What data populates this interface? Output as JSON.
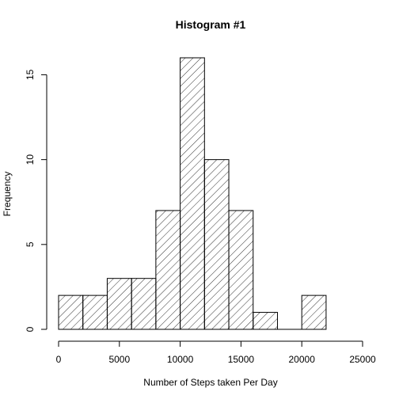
{
  "chart_data": {
    "type": "bar",
    "title": "Histogram #1",
    "xlabel": "Number of Steps taken Per Day",
    "ylabel": "Frequency",
    "bins": [
      {
        "start": 0,
        "end": 2000,
        "count": 2
      },
      {
        "start": 2000,
        "end": 4000,
        "count": 2
      },
      {
        "start": 4000,
        "end": 6000,
        "count": 3
      },
      {
        "start": 6000,
        "end": 8000,
        "count": 3
      },
      {
        "start": 8000,
        "end": 10000,
        "count": 7
      },
      {
        "start": 10000,
        "end": 12000,
        "count": 16
      },
      {
        "start": 12000,
        "end": 14000,
        "count": 10
      },
      {
        "start": 14000,
        "end": 16000,
        "count": 7
      },
      {
        "start": 16000,
        "end": 18000,
        "count": 1
      },
      {
        "start": 18000,
        "end": 20000,
        "count": 0
      },
      {
        "start": 20000,
        "end": 22000,
        "count": 2
      }
    ],
    "xlim": [
      0,
      25000
    ],
    "ylim": [
      0,
      16
    ],
    "xticks": [
      0,
      5000,
      10000,
      15000,
      20000,
      25000
    ],
    "yticks": [
      0,
      5,
      10,
      15
    ],
    "fill_pattern": "diagonal-hatch",
    "bar_color": "#000000",
    "background": "#ffffff",
    "grid": false,
    "legend": "none"
  }
}
